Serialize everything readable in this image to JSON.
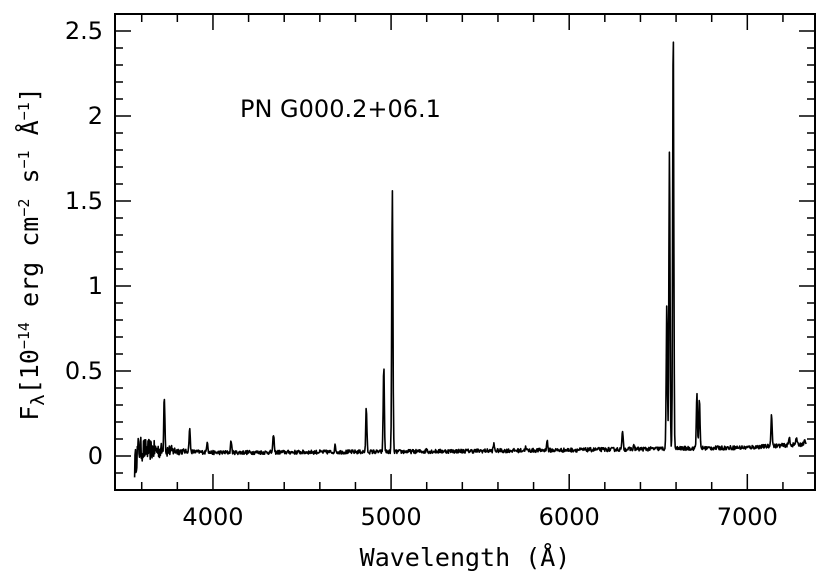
{
  "chart_data": {
    "type": "line",
    "title": "",
    "annotation": "PN G000.2+06.1",
    "xlabel": "Wavelength (Å)",
    "ylabel": {
      "prefix": "F",
      "sub": "λ",
      "bracket": "[10",
      "exp1": "−14",
      "mid1": " erg cm",
      "exp2": "−2",
      "mid2": " s",
      "exp3": "−1",
      "mid3": " Å",
      "exp4": "−1",
      "end": "]"
    },
    "xlim": [
      3450,
      7380
    ],
    "ylim": [
      -0.2,
      2.6
    ],
    "xticks": [
      4000,
      5000,
      6000,
      7000
    ],
    "yticks": [
      0,
      0.5,
      1,
      1.5,
      2,
      2.5
    ],
    "xtick_labels": [
      "4000",
      "5000",
      "6000",
      "7000"
    ],
    "ytick_labels": [
      "0",
      "0.5",
      "1",
      "1.5",
      "2",
      "2.5"
    ],
    "grid": false,
    "legend": "none",
    "line_color": "#000000",
    "spectrum": {
      "x_start": 3560,
      "x_end": 7330,
      "continuum": [
        [
          3560,
          0.04
        ],
        [
          4000,
          0.02
        ],
        [
          5000,
          0.025
        ],
        [
          6000,
          0.035
        ],
        [
          7000,
          0.05
        ],
        [
          7330,
          0.07
        ]
      ],
      "emission_lines": [
        {
          "x": 3727,
          "peak": 0.37
        },
        {
          "x": 3869,
          "peak": 0.16
        },
        {
          "x": 3968,
          "peak": 0.09
        },
        {
          "x": 4102,
          "peak": 0.09
        },
        {
          "x": 4340,
          "peak": 0.13
        },
        {
          "x": 4686,
          "peak": 0.06
        },
        {
          "x": 4861,
          "peak": 0.28
        },
        {
          "x": 4959,
          "peak": 0.53
        },
        {
          "x": 5007,
          "peak": 1.57
        },
        {
          "x": 5200,
          "peak": 0.04
        },
        {
          "x": 5577,
          "peak": 0.07
        },
        {
          "x": 5755,
          "peak": 0.05
        },
        {
          "x": 5876,
          "peak": 0.09
        },
        {
          "x": 6300,
          "peak": 0.15
        },
        {
          "x": 6364,
          "peak": 0.06
        },
        {
          "x": 6548,
          "peak": 0.89
        },
        {
          "x": 6563,
          "peak": 1.8
        },
        {
          "x": 6584,
          "peak": 2.55
        },
        {
          "x": 6717,
          "peak": 0.37
        },
        {
          "x": 6731,
          "peak": 0.33
        },
        {
          "x": 7136,
          "peak": 0.25
        },
        {
          "x": 7236,
          "peak": 0.11
        },
        {
          "x": 7275,
          "peak": 0.11
        },
        {
          "x": 7320,
          "peak": 0.09
        }
      ],
      "noisy_blue_region": [
        3560,
        3850
      ]
    }
  }
}
